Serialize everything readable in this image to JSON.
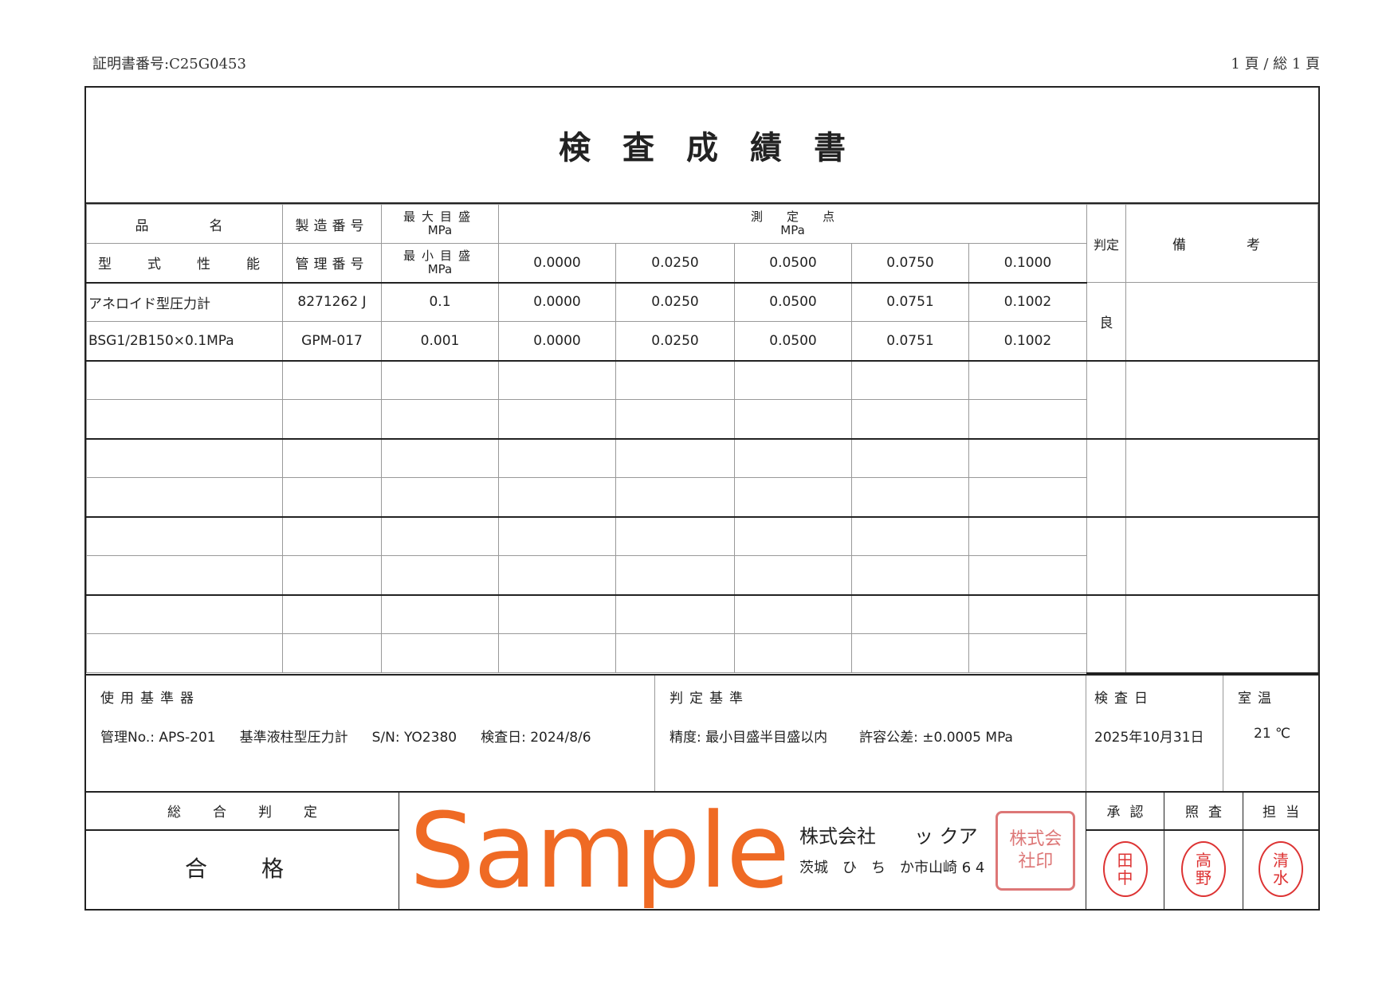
{
  "header": {
    "cert_no": "証明書番号:C25G0453",
    "page": "1 頁 / 総 1 頁"
  },
  "title": "検査成績書",
  "columns": {
    "product_name": "品　　名",
    "serial_no": "製造番号",
    "max_scale": "最大目盛",
    "unit": "MPa",
    "measure_points": "測　　定　　点",
    "judgment": "判定",
    "remarks": "備　　考",
    "model": "型　式　性　能",
    "mgmt_no": "管理番号",
    "min_scale": "最小目盛"
  },
  "measure_points": [
    "0.0000",
    "0.0250",
    "0.0500",
    "0.0750",
    "0.1000"
  ],
  "items": [
    {
      "name": "アネロイド型圧力計",
      "serial": "8271262 J",
      "max": "0.1",
      "readings_a": [
        "0.0000",
        "0.0250",
        "0.0500",
        "0.0751",
        "0.1002"
      ],
      "model": "BSG1/2B150×0.1MPa",
      "mgmt": "GPM-017",
      "min": "0.001",
      "readings_b": [
        "0.0000",
        "0.0250",
        "0.0500",
        "0.0751",
        "0.1002"
      ],
      "judgment": "良",
      "remarks": ""
    }
  ],
  "empty_groups": 4,
  "standard": {
    "label": "使用基準器",
    "mgmt": "管理No.: APS-201",
    "name": "基準液柱型圧力計",
    "sn": "S/N: YO2380",
    "date": "検査日: 2024/8/6"
  },
  "criteria": {
    "label": "判定基準",
    "accuracy": "精度: 最小目盛半目盛以内",
    "tolerance": "許容公差: ±0.0005 MPa"
  },
  "inspection_date": {
    "label": "検査日",
    "value": "2025年10月31日"
  },
  "room_temp": {
    "label": "室温",
    "value": "21 ℃"
  },
  "overall": {
    "label": "総合判定",
    "value": "合　格"
  },
  "company": {
    "name": "株式会社　　ッ クア",
    "address": "茨城　ひ　ち　か市山崎 6 4",
    "seal": "株式会社印",
    "watermark": "Sample",
    "watermark_color": "#ef6a24"
  },
  "signoff": [
    {
      "label": "承認",
      "seal": "田中"
    },
    {
      "label": "照査",
      "seal": "高野"
    },
    {
      "label": "担当",
      "seal": "清水"
    }
  ],
  "seal_color": "#dd3333"
}
